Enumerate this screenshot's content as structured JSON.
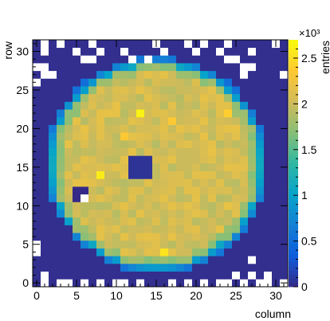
{
  "chart_data": {
    "type": "heatmap",
    "title": "",
    "xlabel": "column",
    "ylabel": "row",
    "zlabel": "entries",
    "zexponent_label": "×10³",
    "xlim": [
      -0.5,
      31.5
    ],
    "ylim": [
      -0.5,
      31.5
    ],
    "zlim": [
      0,
      2700
    ],
    "x_ticks": [
      0,
      5,
      10,
      15,
      20,
      25,
      30
    ],
    "y_ticks": [
      0,
      5,
      10,
      15,
      20,
      25,
      30
    ],
    "z_ticks": [
      0,
      500,
      1000,
      1500,
      2000,
      2500
    ],
    "z_tick_labels": [
      "0",
      "0.5",
      "1",
      "1.5",
      "2",
      "2.5"
    ],
    "palette": "kBird",
    "empty_cell_color": "#ffffff",
    "rows": 32,
    "cols": 32,
    "grid": false,
    "detector": {
      "center_col": 15.0,
      "center_row": 15.3,
      "radius": 13.4,
      "plateau_entries": 2050,
      "ring_entries": 1750,
      "background_entries": 30,
      "cutout_rect": {
        "col_min": 0,
        "col_max": 7,
        "row_min": 0,
        "row_max": 7
      },
      "empty_cells": [
        [
          1,
          0
        ],
        [
          3,
          0
        ],
        [
          4,
          0
        ],
        [
          6,
          0
        ],
        [
          8,
          0
        ],
        [
          10,
          0
        ],
        [
          11,
          0
        ],
        [
          13,
          0
        ],
        [
          17,
          0
        ],
        [
          19,
          0
        ],
        [
          21,
          0
        ],
        [
          23,
          0
        ],
        [
          24,
          0
        ],
        [
          26,
          0
        ],
        [
          28,
          0
        ],
        [
          29,
          0
        ],
        [
          31,
          0
        ],
        [
          1,
          1
        ],
        [
          25,
          1
        ],
        [
          27,
          1
        ],
        [
          29,
          1
        ],
        [
          27,
          3
        ],
        [
          0,
          4
        ],
        [
          0,
          5
        ],
        [
          0,
          26
        ],
        [
          1,
          27
        ],
        [
          2,
          27
        ],
        [
          26,
          27
        ],
        [
          31,
          27
        ],
        [
          0,
          28
        ],
        [
          1,
          28
        ],
        [
          26,
          28
        ],
        [
          27,
          28
        ],
        [
          6,
          29
        ],
        [
          7,
          29
        ],
        [
          12,
          29
        ],
        [
          14,
          29
        ],
        [
          24,
          29
        ],
        [
          25,
          29
        ],
        [
          1,
          30
        ],
        [
          5,
          30
        ],
        [
          8,
          30
        ],
        [
          11,
          30
        ],
        [
          16,
          30
        ],
        [
          20,
          30
        ],
        [
          23,
          30
        ],
        [
          27,
          30
        ],
        [
          1,
          31
        ],
        [
          3,
          31
        ],
        [
          7,
          31
        ],
        [
          15,
          31
        ],
        [
          19,
          31
        ],
        [
          21,
          31
        ],
        [
          24,
          31
        ],
        [
          30,
          31
        ]
      ],
      "dead_regions": [
        {
          "label": "dead",
          "cols": [
            5,
            6
          ],
          "rows": [
            11,
            12
          ],
          "entries": 0,
          "center_entries": null
        },
        {
          "label": "low",
          "cols": [
            12,
            13,
            14
          ],
          "rows": [
            14,
            15,
            16
          ],
          "entries": 60
        }
      ],
      "hot_cells": [
        [
          13,
          22,
          2650
        ],
        [
          8,
          14,
          2600
        ],
        [
          16,
          4,
          2550
        ],
        [
          24,
          22,
          2400
        ],
        [
          17,
          21,
          2350
        ],
        [
          11,
          19,
          2350
        ]
      ]
    }
  }
}
